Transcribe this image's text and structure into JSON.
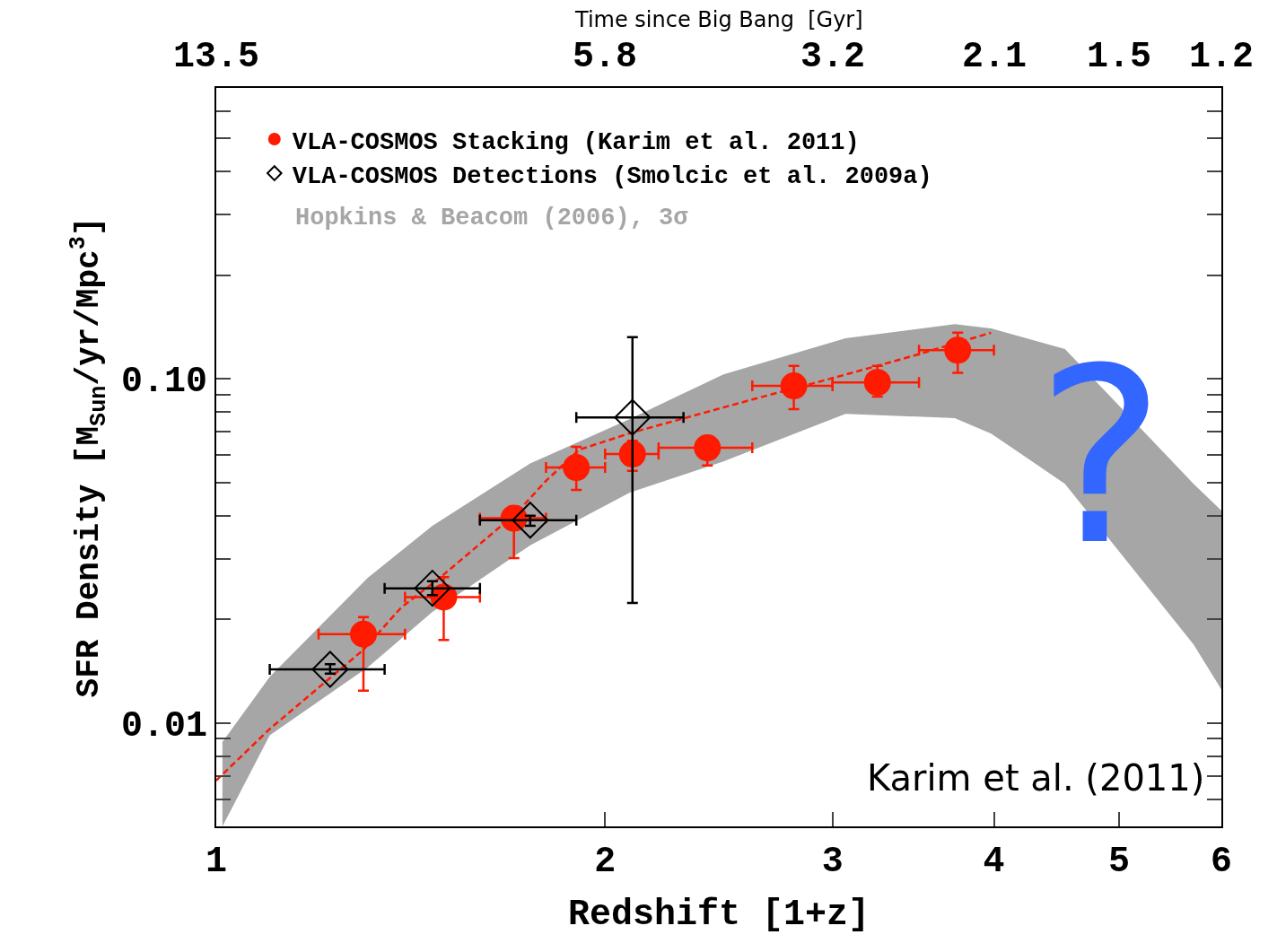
{
  "chart_data": {
    "type": "scatter",
    "x2label": "Time since Big Bang  [Gyr]",
    "xlabel": "Redshift [1+z]",
    "ylabel": "SFR Density [M$_{Sun}$/yr/Mpc$^{3}$]",
    "log": "xy",
    "xlim": [
      1,
      6
    ],
    "xticks": [
      1,
      2,
      3,
      4,
      5,
      6
    ],
    "ylim": [
      0.005,
      0.7
    ],
    "yticks": [
      {
        "value": 0.006,
        "label": null
      },
      {
        "value": 0.007,
        "label": null
      },
      {
        "value": 0.008,
        "label": null
      },
      {
        "value": 0.009,
        "label": null
      },
      {
        "value": 0.01,
        "label": "0.01"
      },
      {
        "value": 0.02,
        "label": null
      },
      {
        "value": 0.03,
        "label": null
      },
      {
        "value": 0.04,
        "label": null
      },
      {
        "value": 0.05,
        "label": null
      },
      {
        "value": 0.06,
        "label": null
      },
      {
        "value": 0.07,
        "label": null
      },
      {
        "value": 0.08,
        "label": null
      },
      {
        "value": 0.09,
        "label": null
      },
      {
        "value": 0.1,
        "label": "0.10"
      },
      {
        "value": 0.2,
        "label": null
      },
      {
        "value": 0.3,
        "label": null
      },
      {
        "value": 0.4,
        "label": null
      },
      {
        "value": 0.5,
        "label": null
      },
      {
        "value": 0.6,
        "label": null
      },
      {
        "value": 0.7,
        "label": null
      }
    ],
    "legend": "top left",
    "series": [
      {
        "name": "Hopkins & Beacom (2006), 3σ",
        "type": "area",
        "color": "#a6a6a6",
        "x": [
          1.011,
          1.1,
          1.31,
          1.47,
          1.75,
          2.09,
          2.47,
          3.07,
          3.73,
          3.98,
          4.54,
          5.71,
          6.0
        ],
        "values": [
          null,
          null,
          null,
          null,
          null,
          null,
          null,
          null,
          null,
          null,
          null,
          null,
          null
        ],
        "lower": [
          0.005,
          0.0092,
          0.0145,
          0.021,
          0.0328,
          0.0467,
          0.0575,
          0.0791,
          0.0768,
          0.0693,
          0.0495,
          0.0169,
          0.0125
        ],
        "upper": [
          0.0088,
          0.0136,
          0.0264,
          0.0374,
          0.0567,
          0.0764,
          0.103,
          0.131,
          0.144,
          0.14,
          0.122,
          0.0495,
          0.0414
        ]
      },
      {
        "type": "line",
        "color": "#ff1a00",
        "line_style": "dashed",
        "marker": "none",
        "x": [
          1.0,
          1.1,
          1.3,
          1.39,
          1.49,
          1.71,
          1.8,
          1.91,
          2.1,
          2.62,
          2.9,
          3.25,
          3.49,
          3.98
        ],
        "values": [
          0.0068,
          0.0096,
          0.0163,
          0.0216,
          0.0264,
          0.0409,
          0.0505,
          0.0622,
          0.0698,
          0.0877,
          0.097,
          0.109,
          0.1175,
          0.136
        ]
      },
      {
        "name": "VLA-COSMOS Stacking (Karim et al. 2011)",
        "marker": "circle",
        "color": "#ff1a00",
        "x": [
          1.3,
          1.5,
          1.7,
          1.9,
          2.1,
          2.4,
          2.8,
          3.25,
          3.75
        ],
        "values": [
          0.0181,
          0.0232,
          0.0393,
          0.0552,
          0.0604,
          0.063,
          0.0953,
          0.0976,
          0.121
        ],
        "errors": [
          [
            0.0124,
            0.0203
          ],
          [
            0.0174,
            0.0265
          ],
          [
            0.0301,
            0.0425
          ],
          [
            0.0475,
            0.0634
          ],
          [
            0.054,
            0.066
          ],
          [
            0.056,
            0.063
          ],
          [
            0.0816,
            0.109
          ],
          [
            0.0887,
            0.109
          ],
          [
            0.104,
            0.136
          ]
        ],
        "xerrors": [
          [
            1.2,
            1.4
          ],
          [
            1.4,
            1.6
          ],
          [
            1.6,
            1.8
          ],
          [
            1.8,
            2.0
          ],
          [
            2.0,
            2.2
          ],
          [
            2.2,
            2.6
          ],
          [
            2.6,
            3.0
          ],
          [
            3.0,
            3.5
          ],
          [
            3.5,
            4.0
          ]
        ]
      },
      {
        "name": "VLA-COSMOS Detections (Smolcic et al. 2009a)",
        "marker": "diamond",
        "color": "#000000",
        "x": [
          1.225,
          1.47,
          1.75,
          2.1
        ],
        "values": [
          0.0143,
          0.0246,
          0.0388,
          0.0772
        ],
        "errors": [
          [
            0.0139,
            0.0148
          ],
          [
            0.0235,
            0.0258
          ],
          [
            0.0374,
            0.04
          ],
          [
            0.0223,
            0.132
          ]
        ],
        "xerrors": [
          [
            1.1,
            1.35
          ],
          [
            1.35,
            1.6
          ],
          [
            1.6,
            1.9
          ],
          [
            1.9,
            2.3
          ]
        ]
      }
    ],
    "annotations": [
      "Karim et al. (2011)",
      "?",
      "13.5",
      "5.8",
      "3.2",
      "2.1",
      "1.5",
      "1.2"
    ]
  }
}
